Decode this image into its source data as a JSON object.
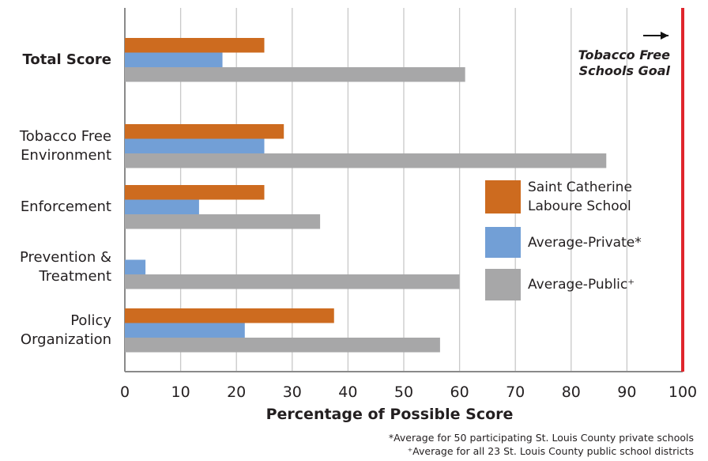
{
  "chart_data": {
    "type": "bar",
    "orientation": "horizontal",
    "categories": [
      "Total Score",
      "Tobacco Free Environment",
      "Enforcement",
      "Prevention & Treatment",
      "Policy Organization"
    ],
    "series": [
      {
        "name": "Saint Catherine Laboure School",
        "color": "#cd6b1f",
        "values": [
          25,
          28.5,
          25,
          0,
          37.5
        ]
      },
      {
        "name": "Average-Private*",
        "color": "#729fd6",
        "values": [
          17.5,
          25,
          13.3,
          3.7,
          21.5
        ]
      },
      {
        "name": "Average-Public⁺",
        "color": "#a7a7a8",
        "values": [
          61,
          86.3,
          35,
          60,
          56.5
        ]
      }
    ],
    "xlim": [
      0,
      100
    ],
    "xticks": [
      0,
      10,
      20,
      30,
      40,
      50,
      60,
      70,
      80,
      90,
      100
    ],
    "x_label": "Percentage of Possible Score",
    "grid": true,
    "goal": {
      "value": 100,
      "label": "Tobacco Free Schools Goal",
      "color": "#e0262c"
    },
    "footnotes": [
      "*Average for 50 participating St. Louis County private schools",
      "⁺Average for all 23 St. Louis County public school districts"
    ]
  }
}
